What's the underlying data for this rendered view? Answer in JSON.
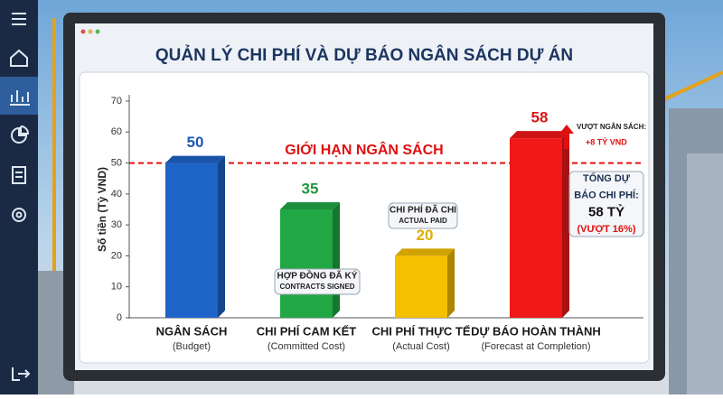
{
  "chart_data": {
    "type": "bar",
    "title": "QUẢN LÝ CHI PHÍ VÀ DỰ BÁO NGÂN SÁCH DỰ ÁN",
    "ylabel": "Số tiền (Tỷ VND)",
    "categories": [
      "NGÂN SÁCH",
      "CHI PHÍ CAM KẾT",
      "CHI PHÍ THỰC TẾ",
      "DỰ BÁO HOÀN THÀNH"
    ],
    "category_sublabels": [
      "(Budget)",
      "(Committed Cost)",
      "(Actual Cost)",
      "(Forecast at Completion)"
    ],
    "values": [
      50,
      35,
      20,
      58
    ],
    "colors": [
      "#1e63c8",
      "#22a745",
      "#f5c000",
      "#f01818"
    ],
    "ylim": [
      0,
      70
    ],
    "yticks": [
      0,
      10,
      20,
      30,
      40,
      50,
      60,
      70
    ],
    "reference_line": {
      "value": 50,
      "label": "GIỚI HẠN NGÂN SÁCH",
      "color": "#e01010"
    },
    "annotations": [
      {
        "lines": [
          "HỢP ĐỒNG ĐÃ KÝ",
          "CONTRACTS SIGNED"
        ]
      },
      {
        "lines": [
          "CHI PHÍ ĐÃ CHI",
          "ACTUAL PAID"
        ]
      },
      {
        "lines": [
          "VƯỢT NGÂN SÁCH:",
          "+8 TỶ VND"
        ]
      },
      {
        "lines": [
          "TỔNG DỰ",
          "BÁO CHI PHÍ:",
          "58 TỶ",
          "(VƯỢT 16%)"
        ]
      }
    ]
  }
}
